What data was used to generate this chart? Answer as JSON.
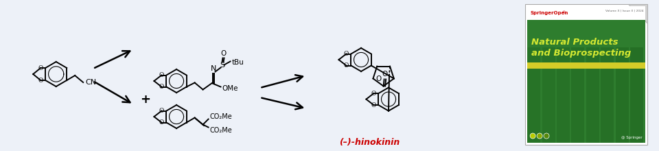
{
  "background_color": "#edf1f8",
  "figsize": [
    9.6,
    2.2
  ],
  "dpi": 100,
  "journal_bg_color": "#2a8a2a",
  "journal_title_line1": "Natural Products",
  "journal_title_line2": "and Bioprospecting",
  "journal_title_color": "#d4e832",
  "springer_open_color": "#cc0000",
  "springer_text": "SpringerOpen",
  "hinokinin_label": "(–)-hinokinin",
  "hinokinin_color": "#cc0000",
  "yellow_stripe_color": "#d4cc28"
}
